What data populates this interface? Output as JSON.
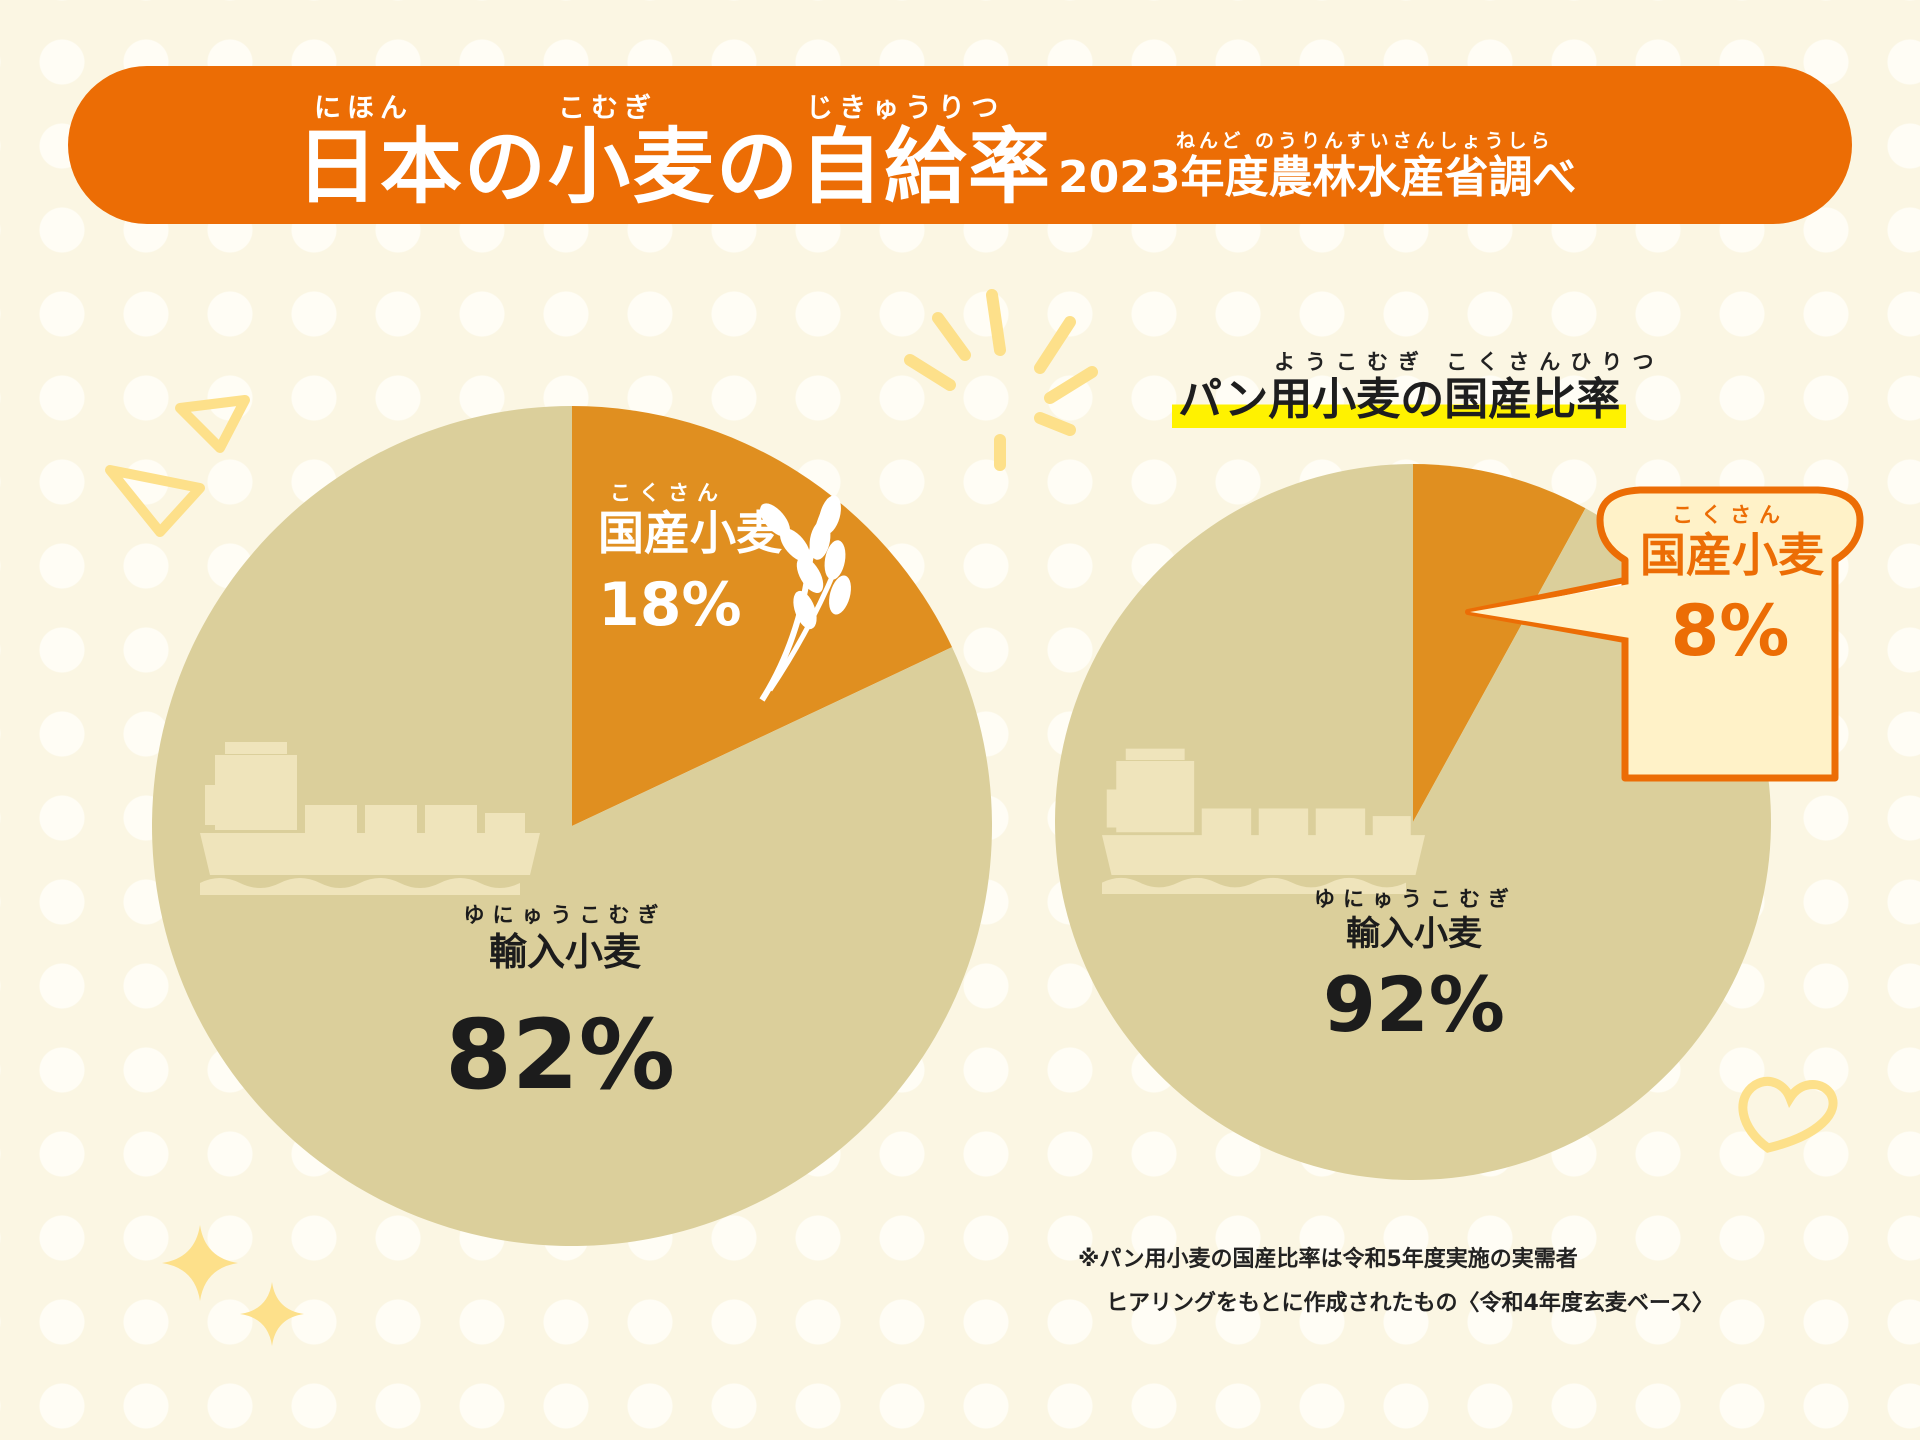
{
  "header": {
    "title": "日本の小麦の自給率",
    "title_ruby": [
      "にほん",
      "こむぎ",
      "じきゅうりつ"
    ],
    "subtitle": "2023年度農林水産省調べ",
    "subtitle_ruby": "ねんど のうりんすいさんしょうしら"
  },
  "chart_data": [
    {
      "type": "pie",
      "title": "",
      "slices": [
        {
          "label": "国産小麦",
          "ruby": [
            "こくさん",
            "こむぎ"
          ],
          "value": 18,
          "display": "18%",
          "color": "#e08f20"
        },
        {
          "label": "輸入小麦",
          "ruby": [
            "ゆにゅうこむぎ"
          ],
          "value": 82,
          "display": "82%",
          "color": "#dbcf9b"
        }
      ]
    },
    {
      "type": "pie",
      "title": "パン用小麦の国産比率",
      "title_ruby": "ようこむぎ こくさんひりつ",
      "slices": [
        {
          "label": "国産小麦",
          "ruby": [
            "こくさん",
            "こむぎ"
          ],
          "value": 8,
          "display": "8%",
          "color": "#e08f20"
        },
        {
          "label": "輸入小麦",
          "ruby": [
            "ゆにゅうこむぎ"
          ],
          "value": 92,
          "display": "92%",
          "color": "#dbcf9b"
        }
      ]
    }
  ],
  "notes": {
    "line1": "※パン用小麦の国産比率は令和5年度実施の実需者",
    "line2": "ヒアリングをもとに作成されたもの〈令和4年度玄麦ベース〉"
  },
  "colors": {
    "header": "#ec6d05",
    "domestic": "#e08f20",
    "imported": "#dbcf9b",
    "accent_text": "#ec6d05",
    "highlight": "#fff200"
  },
  "icons": [
    "wheat-icon",
    "cargo-ship-icon",
    "bread-icon",
    "sparkle-icon",
    "heart-icon",
    "burst-icon",
    "triangle-icon"
  ]
}
